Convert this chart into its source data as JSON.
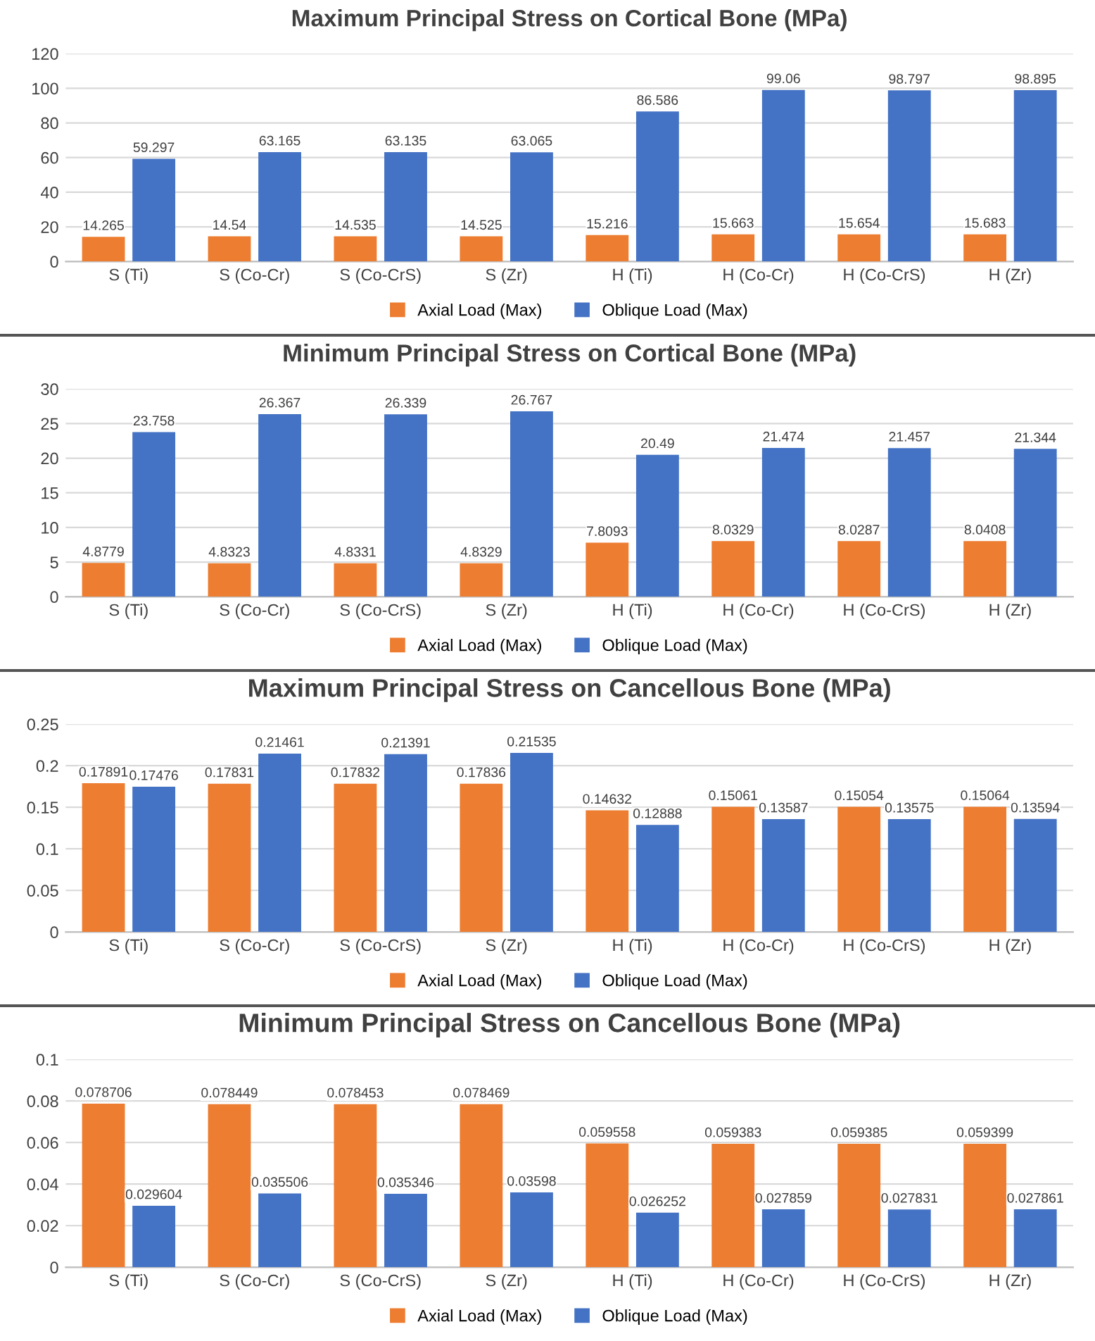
{
  "chart_data": [
    {
      "type": "bar",
      "title": "Maximum Principal Stress on Cortical Bone (MPa)",
      "categories": [
        "S (Ti)",
        "S (Co-Cr)",
        "S (Co-CrS)",
        "S (Zr)",
        "H (Ti)",
        "H (Co-Cr)",
        "H (Co-CrS)",
        "H (Zr)"
      ],
      "series": [
        {
          "name": "Axial Load (Max)",
          "color": "#ed7d31",
          "values": [
            14.265,
            14.54,
            14.535,
            14.525,
            15.216,
            15.663,
            15.654,
            15.683
          ]
        },
        {
          "name": "Oblique Load (Max)",
          "color": "#4472c4",
          "values": [
            59.297,
            63.165,
            63.135,
            63.065,
            86.586,
            99.06,
            98.797,
            98.895
          ]
        }
      ],
      "ylim": [
        0,
        120
      ],
      "yticks": [
        0,
        20,
        40,
        60,
        80,
        100,
        120
      ],
      "grid": "y",
      "legend": "bottom",
      "data_labels": true
    },
    {
      "type": "bar",
      "title": "Minimum Principal Stress on Cortical Bone (MPa)",
      "categories": [
        "S (Ti)",
        "S (Co-Cr)",
        "S (Co-CrS)",
        "S (Zr)",
        "H (Ti)",
        "H (Co-Cr)",
        "H (Co-CrS)",
        "H (Zr)"
      ],
      "series": [
        {
          "name": "Axial Load (Max)",
          "color": "#ed7d31",
          "values": [
            4.8779,
            4.8323,
            4.8331,
            4.8329,
            7.8093,
            8.0329,
            8.0287,
            8.0408
          ]
        },
        {
          "name": "Oblique Load (Max)",
          "color": "#4472c4",
          "values": [
            23.758,
            26.367,
            26.339,
            26.767,
            20.49,
            21.474,
            21.457,
            21.344
          ]
        }
      ],
      "ylim": [
        0,
        30
      ],
      "yticks": [
        0,
        5,
        10,
        15,
        20,
        25,
        30
      ],
      "grid": "y",
      "legend": "bottom",
      "data_labels": true
    },
    {
      "type": "bar",
      "title": "Maximum Principal Stress on Cancellous Bone (MPa)",
      "categories": [
        "S (Ti)",
        "S (Co-Cr)",
        "S (Co-CrS)",
        "S (Zr)",
        "H (Ti)",
        "H (Co-Cr)",
        "H (Co-CrS)",
        "H (Zr)"
      ],
      "series": [
        {
          "name": "Axial Load (Max)",
          "color": "#ed7d31",
          "values": [
            0.17891,
            0.17831,
            0.17832,
            0.17836,
            0.14632,
            0.15061,
            0.15054,
            0.15064
          ]
        },
        {
          "name": "Oblique Load (Max)",
          "color": "#4472c4",
          "values": [
            0.17476,
            0.21461,
            0.21391,
            0.21535,
            0.12888,
            0.13587,
            0.13575,
            0.13594
          ]
        }
      ],
      "ylim": [
        0,
        0.25
      ],
      "yticks": [
        0,
        0.05,
        0.1,
        0.15,
        0.2,
        0.25
      ],
      "grid": "y",
      "legend": "bottom",
      "data_labels": true
    },
    {
      "type": "bar",
      "title": "Minimum Principal Stress on Cancellous Bone (MPa)",
      "categories": [
        "S (Ti)",
        "S (Co-Cr)",
        "S (Co-CrS)",
        "S (Zr)",
        "H (Ti)",
        "H (Co-Cr)",
        "H (Co-CrS)",
        "H (Zr)"
      ],
      "series": [
        {
          "name": "Axial Load (Max)",
          "color": "#ed7d31",
          "values": [
            0.078706,
            0.078449,
            0.078453,
            0.078469,
            0.059558,
            0.059383,
            0.059385,
            0.059399
          ]
        },
        {
          "name": "Oblique Load (Max)",
          "color": "#4472c4",
          "values": [
            0.029604,
            0.035506,
            0.035346,
            0.03598,
            0.026252,
            0.027859,
            0.027831,
            0.027861
          ]
        }
      ],
      "ylim": [
        0,
        0.1
      ],
      "yticks": [
        0,
        0.02,
        0.04,
        0.06,
        0.08,
        0.1
      ],
      "grid": "y",
      "legend": "bottom",
      "data_labels": true
    }
  ]
}
